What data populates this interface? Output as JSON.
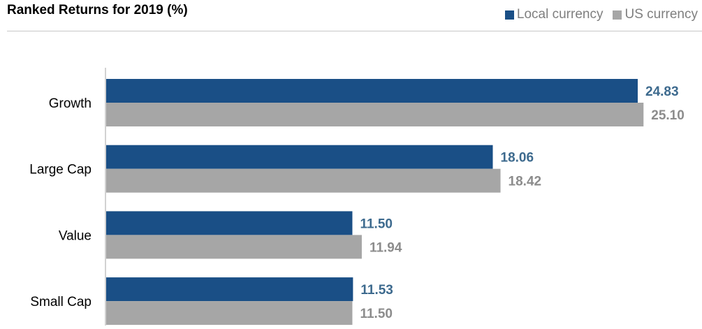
{
  "chart_data": {
    "type": "bar",
    "orientation": "horizontal",
    "title": "Ranked Returns for 2019 (%)",
    "categories": [
      "Growth",
      "Large Cap",
      "Value",
      "Small Cap"
    ],
    "series": [
      {
        "name": "Local currency",
        "values": [
          24.83,
          18.06,
          11.5,
          11.53
        ],
        "labels": [
          "24.83",
          "18.06",
          "11.50",
          "11.53"
        ],
        "color": "#1a4f86",
        "label_color": "#3d6a8e"
      },
      {
        "name": "US currency",
        "values": [
          25.1,
          18.42,
          11.94,
          11.5
        ],
        "labels": [
          "25.10",
          "18.42",
          "11.94",
          "11.50"
        ],
        "color": "#a6a6a6",
        "label_color": "#8c8c8c"
      }
    ],
    "xlim": [
      0,
      27
    ],
    "grid": false,
    "legend_position": "top-right"
  }
}
